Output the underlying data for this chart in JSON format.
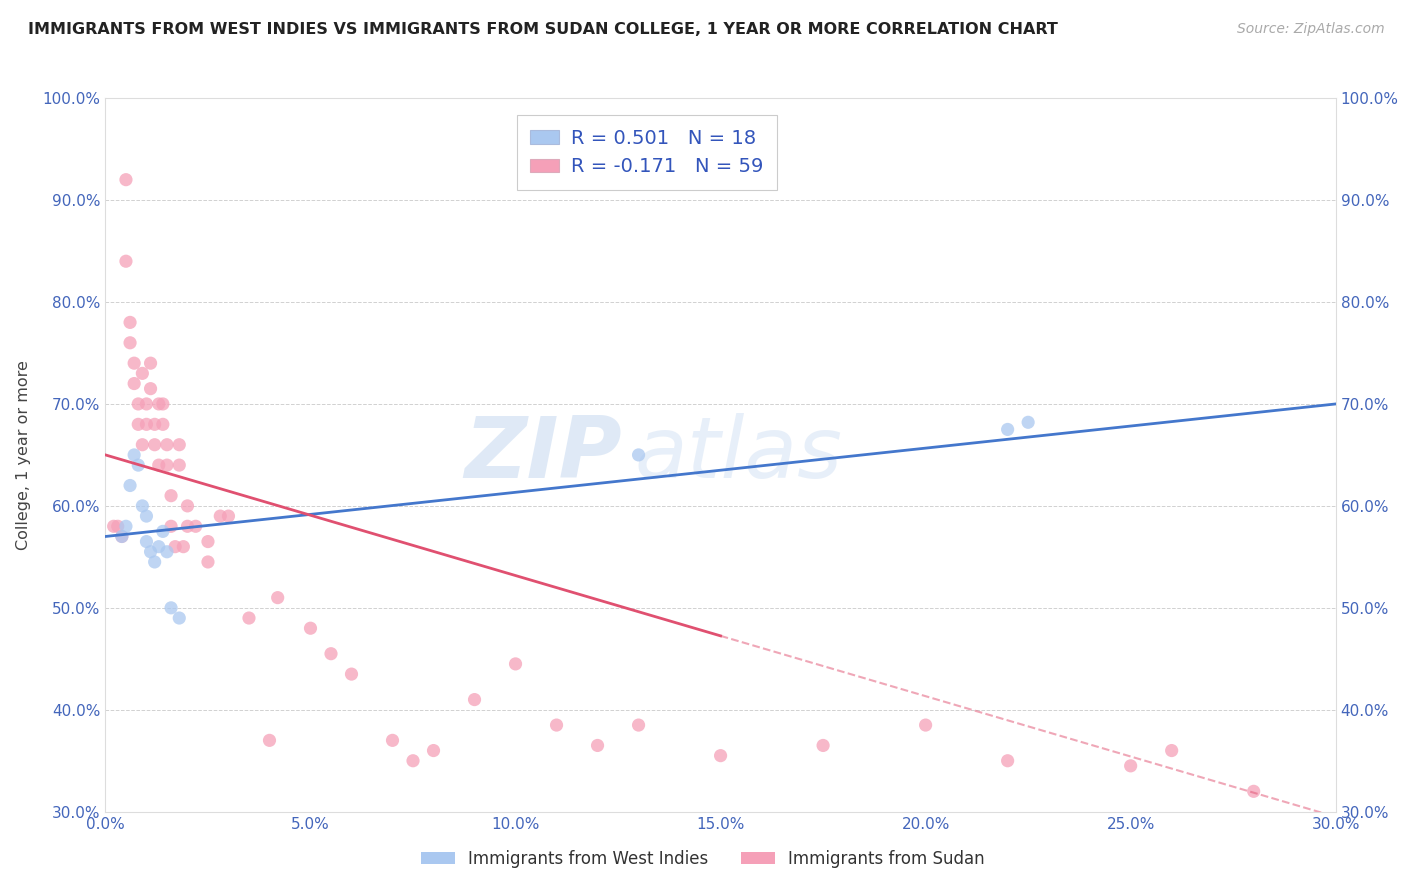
{
  "title": "IMMIGRANTS FROM WEST INDIES VS IMMIGRANTS FROM SUDAN COLLEGE, 1 YEAR OR MORE CORRELATION CHART",
  "source": "Source: ZipAtlas.com",
  "ylabel": "College, 1 year or more",
  "xlim": [
    0.0,
    0.3
  ],
  "ylim": [
    0.3,
    1.0
  ],
  "xticks": [
    0.0,
    0.05,
    0.1,
    0.15,
    0.2,
    0.25,
    0.3
  ],
  "yticks": [
    0.3,
    0.4,
    0.5,
    0.6,
    0.7,
    0.8,
    0.9,
    1.0
  ],
  "xtick_labels": [
    "0.0%",
    "5.0%",
    "10.0%",
    "15.0%",
    "20.0%",
    "25.0%",
    "30.0%"
  ],
  "ytick_labels": [
    "30.0%",
    "40.0%",
    "50.0%",
    "60.0%",
    "70.0%",
    "80.0%",
    "90.0%",
    "100.0%"
  ],
  "series1_color": "#aac8f0",
  "series2_color": "#f5a0b8",
  "line1_color": "#4477cc",
  "line2_color": "#e05070",
  "legend1_label": "R = 0.501   N = 18",
  "legend2_label": "R = -0.171   N = 59",
  "watermark_text": "ZIP",
  "watermark_text2": "atlas",
  "west_indies_x": [
    0.004,
    0.005,
    0.006,
    0.007,
    0.008,
    0.009,
    0.01,
    0.01,
    0.011,
    0.012,
    0.013,
    0.014,
    0.015,
    0.016,
    0.018,
    0.13,
    0.22,
    0.225
  ],
  "west_indies_y": [
    0.57,
    0.58,
    0.62,
    0.65,
    0.64,
    0.6,
    0.59,
    0.565,
    0.555,
    0.545,
    0.56,
    0.575,
    0.555,
    0.5,
    0.49,
    0.65,
    0.675,
    0.682
  ],
  "sudan_x": [
    0.002,
    0.003,
    0.004,
    0.005,
    0.005,
    0.006,
    0.006,
    0.007,
    0.007,
    0.008,
    0.008,
    0.009,
    0.009,
    0.01,
    0.01,
    0.011,
    0.011,
    0.012,
    0.012,
    0.013,
    0.013,
    0.014,
    0.014,
    0.015,
    0.015,
    0.016,
    0.016,
    0.017,
    0.018,
    0.018,
    0.019,
    0.02,
    0.02,
    0.022,
    0.025,
    0.025,
    0.028,
    0.03,
    0.035,
    0.04,
    0.042,
    0.05,
    0.055,
    0.06,
    0.07,
    0.075,
    0.08,
    0.09,
    0.1,
    0.11,
    0.12,
    0.13,
    0.15,
    0.175,
    0.2,
    0.22,
    0.25,
    0.26,
    0.28
  ],
  "sudan_y": [
    0.58,
    0.58,
    0.57,
    0.92,
    0.84,
    0.78,
    0.76,
    0.74,
    0.72,
    0.7,
    0.68,
    0.73,
    0.66,
    0.7,
    0.68,
    0.715,
    0.74,
    0.68,
    0.66,
    0.7,
    0.64,
    0.7,
    0.68,
    0.66,
    0.64,
    0.61,
    0.58,
    0.56,
    0.66,
    0.64,
    0.56,
    0.6,
    0.58,
    0.58,
    0.565,
    0.545,
    0.59,
    0.59,
    0.49,
    0.37,
    0.51,
    0.48,
    0.455,
    0.435,
    0.37,
    0.35,
    0.36,
    0.41,
    0.445,
    0.385,
    0.365,
    0.385,
    0.355,
    0.365,
    0.385,
    0.35,
    0.345,
    0.36,
    0.32
  ],
  "line1_x0": 0.0,
  "line1_y0": 0.57,
  "line1_x1": 0.3,
  "line1_y1": 0.7,
  "line2_x0": 0.0,
  "line2_y0": 0.65,
  "line2_x1": 0.3,
  "line2_y1": 0.295,
  "line2_solid_end": 0.15
}
